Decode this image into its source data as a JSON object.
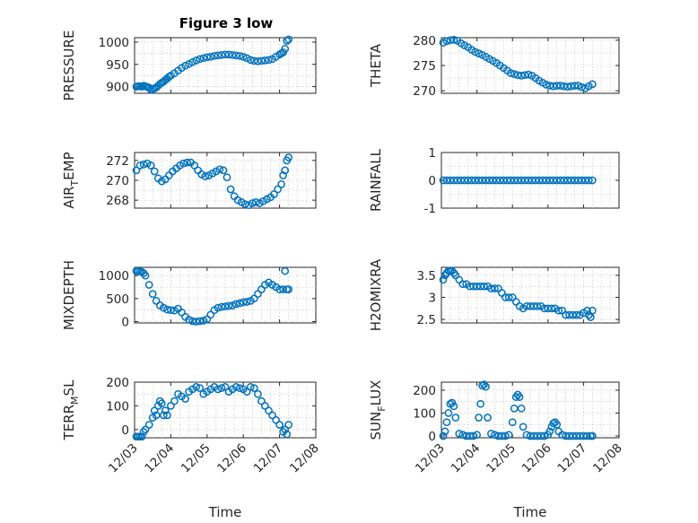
{
  "title": "Figure 3 low",
  "marker_color": "#0072BD",
  "chart_data": [
    {
      "id": "pressure",
      "type": "scatter",
      "title": "Figure 3 low",
      "ylabel": "PRESSURE",
      "xlabel": "",
      "xlim": [
        0,
        5
      ],
      "ylim": [
        885,
        1010
      ],
      "yticks": [
        900,
        950,
        1000
      ],
      "xtick_labels": [],
      "grid": true,
      "x": [
        0.05,
        0.1,
        0.15,
        0.2,
        0.25,
        0.3,
        0.35,
        0.4,
        0.45,
        0.5,
        0.55,
        0.6,
        0.65,
        0.7,
        0.75,
        0.8,
        0.85,
        0.9,
        0.95,
        1.0,
        1.1,
        1.2,
        1.3,
        1.4,
        1.5,
        1.6,
        1.7,
        1.8,
        1.9,
        2.0,
        2.1,
        2.2,
        2.3,
        2.4,
        2.5,
        2.6,
        2.7,
        2.8,
        2.9,
        3.0,
        3.1,
        3.2,
        3.3,
        3.4,
        3.5,
        3.6,
        3.7,
        3.8,
        3.9,
        4.0,
        4.05,
        4.1,
        4.15,
        4.2,
        4.25
      ],
      "y": [
        900,
        901,
        901,
        900,
        902,
        901,
        899,
        898,
        893,
        894,
        896,
        898,
        902,
        906,
        909,
        911,
        915,
        918,
        922,
        925,
        930,
        936,
        942,
        947,
        951,
        955,
        959,
        962,
        964,
        966,
        967,
        969,
        970,
        971,
        972,
        972,
        971,
        970,
        969,
        967,
        964,
        960,
        958,
        957,
        958,
        959,
        960,
        962,
        967,
        972,
        975,
        977,
        985,
        1003,
        1006
      ]
    },
    {
      "id": "theta",
      "type": "scatter",
      "ylabel": "THETA",
      "xlabel": "",
      "xlim": [
        0,
        5
      ],
      "ylim": [
        269.5,
        280.5
      ],
      "yticks": [
        270,
        275,
        280
      ],
      "xtick_labels": [],
      "grid": true,
      "x": [
        0.05,
        0.15,
        0.25,
        0.35,
        0.45,
        0.55,
        0.65,
        0.75,
        0.85,
        0.95,
        1.05,
        1.15,
        1.25,
        1.35,
        1.45,
        1.55,
        1.65,
        1.75,
        1.85,
        1.95,
        2.05,
        2.15,
        2.25,
        2.35,
        2.45,
        2.55,
        2.65,
        2.75,
        2.85,
        2.95,
        3.05,
        3.15,
        3.25,
        3.35,
        3.45,
        3.55,
        3.65,
        3.75,
        3.85,
        3.95,
        4.05,
        4.15,
        4.25
      ],
      "y": [
        279.5,
        279.8,
        280.0,
        280.1,
        279.9,
        279.4,
        279.0,
        278.6,
        278.1,
        277.7,
        277.4,
        277.1,
        276.7,
        276.3,
        275.9,
        275.5,
        275.0,
        274.5,
        274.0,
        273.5,
        273.3,
        273.1,
        273.0,
        273.1,
        273.2,
        273.0,
        272.5,
        272.0,
        271.6,
        271.2,
        271.0,
        270.9,
        271.0,
        271.0,
        270.9,
        270.8,
        270.9,
        271.0,
        271.0,
        270.7,
        270.5,
        270.9,
        271.3
      ]
    },
    {
      "id": "air-temp",
      "type": "scatter",
      "ylabel": "AIR_TEMP",
      "ylabel_display": [
        "AIR",
        "T",
        "EMP"
      ],
      "xlabel": "",
      "xlim": [
        0,
        5
      ],
      "ylim": [
        267.2,
        272.8
      ],
      "yticks": [
        268,
        270,
        272
      ],
      "xtick_labels": [],
      "grid": true,
      "x": [
        0.05,
        0.15,
        0.25,
        0.35,
        0.45,
        0.55,
        0.65,
        0.75,
        0.85,
        0.95,
        1.05,
        1.15,
        1.25,
        1.35,
        1.45,
        1.55,
        1.65,
        1.75,
        1.85,
        1.95,
        2.05,
        2.15,
        2.25,
        2.35,
        2.45,
        2.55,
        2.65,
        2.75,
        2.85,
        2.95,
        3.05,
        3.15,
        3.25,
        3.35,
        3.45,
        3.55,
        3.65,
        3.75,
        3.85,
        3.95,
        4.05,
        4.1,
        4.15,
        4.2,
        4.25
      ],
      "y": [
        271.0,
        271.5,
        271.6,
        271.7,
        271.5,
        270.9,
        270.2,
        269.9,
        270.1,
        270.5,
        270.9,
        271.2,
        271.5,
        271.7,
        271.8,
        271.8,
        271.5,
        271.0,
        270.6,
        270.4,
        270.5,
        270.7,
        270.9,
        271.1,
        271.0,
        270.3,
        269.1,
        268.4,
        268.0,
        267.8,
        267.6,
        267.5,
        267.7,
        267.8,
        267.7,
        267.9,
        268.1,
        268.3,
        268.6,
        269.1,
        269.6,
        270.5,
        271.0,
        272.0,
        272.3
      ]
    },
    {
      "id": "rainfall",
      "type": "scatter",
      "ylabel": "RAINFALL",
      "xlabel": "",
      "xlim": [
        0,
        5
      ],
      "ylim": [
        -1,
        1
      ],
      "yticks": [
        -1,
        0,
        1
      ],
      "xtick_labels": [],
      "grid": true,
      "x": [
        0.05,
        0.15,
        0.25,
        0.35,
        0.45,
        0.55,
        0.65,
        0.75,
        0.85,
        0.95,
        1.05,
        1.15,
        1.25,
        1.35,
        1.45,
        1.55,
        1.65,
        1.75,
        1.85,
        1.95,
        2.05,
        2.15,
        2.25,
        2.35,
        2.45,
        2.55,
        2.65,
        2.75,
        2.85,
        2.95,
        3.05,
        3.15,
        3.25,
        3.35,
        3.45,
        3.55,
        3.65,
        3.75,
        3.85,
        3.95,
        4.05,
        4.15,
        4.25
      ],
      "y": [
        0,
        0,
        0,
        0,
        0,
        0,
        0,
        0,
        0,
        0,
        0,
        0,
        0,
        0,
        0,
        0,
        0,
        0,
        0,
        0,
        0,
        0,
        0,
        0,
        0,
        0,
        0,
        0,
        0,
        0,
        0,
        0,
        0,
        0,
        0,
        0,
        0,
        0,
        0,
        0,
        0,
        0,
        0
      ]
    },
    {
      "id": "mixdepth",
      "type": "scatter",
      "ylabel": "MIXDEPTH",
      "xlabel": "",
      "xlim": [
        0,
        5
      ],
      "ylim": [
        -30,
        1180
      ],
      "yticks": [
        0,
        500,
        1000
      ],
      "xtick_labels": [],
      "grid": true,
      "x": [
        0.05,
        0.1,
        0.15,
        0.2,
        0.25,
        0.3,
        0.4,
        0.5,
        0.6,
        0.7,
        0.8,
        0.9,
        1.0,
        1.1,
        1.2,
        1.3,
        1.4,
        1.5,
        1.6,
        1.7,
        1.8,
        1.9,
        2.0,
        2.1,
        2.2,
        2.3,
        2.4,
        2.5,
        2.6,
        2.7,
        2.8,
        2.9,
        3.0,
        3.1,
        3.2,
        3.3,
        3.4,
        3.5,
        3.6,
        3.7,
        3.8,
        3.9,
        4.0,
        4.1,
        4.15,
        4.2,
        4.25
      ],
      "y": [
        1100,
        1100,
        1090,
        1080,
        1050,
        1000,
        800,
        600,
        450,
        350,
        300,
        260,
        250,
        240,
        280,
        200,
        100,
        40,
        10,
        0,
        10,
        20,
        50,
        150,
        250,
        300,
        320,
        330,
        340,
        350,
        380,
        400,
        420,
        430,
        450,
        500,
        600,
        700,
        800,
        850,
        800,
        750,
        700,
        700,
        1100,
        700,
        700
      ]
    },
    {
      "id": "h2omixra",
      "type": "scatter",
      "ylabel": "H2OMIXRA",
      "xlabel": "",
      "xlim": [
        0,
        5
      ],
      "ylim": [
        2.42,
        3.68
      ],
      "yticks": [
        2.5,
        3,
        3.5
      ],
      "xtick_labels": [],
      "grid": true,
      "x": [
        0.05,
        0.1,
        0.15,
        0.2,
        0.25,
        0.3,
        0.35,
        0.4,
        0.5,
        0.6,
        0.7,
        0.8,
        0.9,
        1.0,
        1.1,
        1.2,
        1.3,
        1.4,
        1.5,
        1.6,
        1.7,
        1.8,
        1.9,
        2.0,
        2.1,
        2.2,
        2.3,
        2.4,
        2.5,
        2.6,
        2.7,
        2.8,
        2.9,
        3.0,
        3.1,
        3.2,
        3.3,
        3.4,
        3.5,
        3.6,
        3.7,
        3.8,
        3.9,
        4.0,
        4.1,
        4.15,
        4.2,
        4.25
      ],
      "y": [
        3.4,
        3.5,
        3.55,
        3.6,
        3.6,
        3.6,
        3.55,
        3.5,
        3.4,
        3.3,
        3.3,
        3.25,
        3.25,
        3.25,
        3.25,
        3.25,
        3.25,
        3.2,
        3.2,
        3.2,
        3.1,
        3.0,
        3.0,
        3.0,
        2.9,
        2.8,
        2.75,
        2.8,
        2.8,
        2.8,
        2.8,
        2.8,
        2.75,
        2.75,
        2.75,
        2.75,
        2.7,
        2.7,
        2.6,
        2.6,
        2.6,
        2.6,
        2.6,
        2.65,
        2.7,
        2.6,
        2.55,
        2.7
      ]
    },
    {
      "id": "terr-msl",
      "type": "scatter",
      "ylabel": "TERR_MSL",
      "ylabel_display": [
        "TERR",
        "M",
        "SL"
      ],
      "xlabel": "Time",
      "xlim": [
        0,
        5
      ],
      "ylim": [
        -35,
        200
      ],
      "yticks": [
        0,
        100,
        200
      ],
      "xtick_labels": [
        "12/03",
        "12/04",
        "12/05",
        "12/06",
        "12/07",
        "12/08"
      ],
      "grid": true,
      "x": [
        0.05,
        0.1,
        0.15,
        0.2,
        0.25,
        0.3,
        0.4,
        0.5,
        0.55,
        0.6,
        0.65,
        0.7,
        0.75,
        0.8,
        0.85,
        0.9,
        1.0,
        1.1,
        1.2,
        1.3,
        1.4,
        1.5,
        1.6,
        1.7,
        1.8,
        1.9,
        2.0,
        2.1,
        2.2,
        2.3,
        2.4,
        2.5,
        2.6,
        2.7,
        2.8,
        2.9,
        3.0,
        3.1,
        3.2,
        3.3,
        3.4,
        3.5,
        3.6,
        3.7,
        3.8,
        3.9,
        4.0,
        4.1,
        4.15,
        4.2,
        4.25
      ],
      "y": [
        -30,
        -30,
        -30,
        -30,
        -10,
        0,
        20,
        50,
        80,
        60,
        100,
        120,
        110,
        60,
        80,
        60,
        100,
        120,
        150,
        140,
        130,
        160,
        170,
        180,
        175,
        150,
        160,
        170,
        180,
        170,
        175,
        180,
        160,
        170,
        180,
        175,
        170,
        160,
        180,
        175,
        150,
        120,
        100,
        80,
        60,
        40,
        20,
        -10,
        0,
        -20,
        20
      ]
    },
    {
      "id": "sun-flux",
      "type": "scatter",
      "ylabel": "SUN_FLUX",
      "ylabel_display": [
        "SUN",
        "F",
        "LUX"
      ],
      "xlabel": "Time",
      "xlim": [
        0,
        5
      ],
      "ylim": [
        -8,
        235
      ],
      "yticks": [
        0,
        100,
        200
      ],
      "xtick_labels": [
        "12/03",
        "12/04",
        "12/05",
        "12/06",
        "12/07",
        "12/08"
      ],
      "grid": true,
      "x": [
        0.05,
        0.1,
        0.15,
        0.2,
        0.25,
        0.3,
        0.35,
        0.4,
        0.5,
        0.6,
        0.7,
        0.8,
        0.9,
        1.0,
        1.05,
        1.1,
        1.15,
        1.2,
        1.25,
        1.3,
        1.4,
        1.5,
        1.6,
        1.7,
        1.8,
        1.9,
        2.0,
        2.05,
        2.1,
        2.15,
        2.2,
        2.25,
        2.3,
        2.4,
        2.5,
        2.6,
        2.7,
        2.8,
        2.9,
        3.0,
        3.05,
        3.1,
        3.15,
        3.2,
        3.25,
        3.3,
        3.4,
        3.5,
        3.6,
        3.7,
        3.8,
        3.9,
        4.0,
        4.1,
        4.2,
        4.25
      ],
      "y": [
        0,
        20,
        60,
        100,
        140,
        145,
        130,
        80,
        10,
        5,
        0,
        0,
        0,
        5,
        80,
        140,
        220,
        225,
        215,
        80,
        10,
        5,
        0,
        0,
        0,
        5,
        60,
        120,
        170,
        180,
        170,
        120,
        40,
        5,
        0,
        0,
        0,
        0,
        0,
        5,
        20,
        40,
        55,
        60,
        50,
        20,
        5,
        0,
        0,
        0,
        0,
        0,
        0,
        0,
        0,
        0
      ]
    }
  ]
}
